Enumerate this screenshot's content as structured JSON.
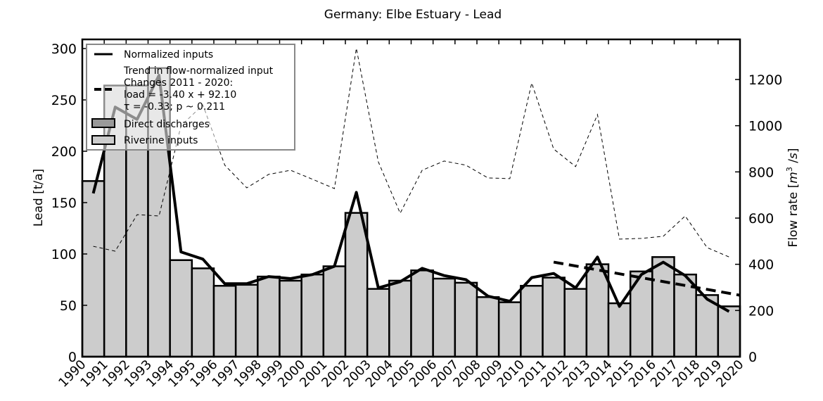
{
  "chart_data": {
    "type": "bar",
    "title": "Germany: Elbe Estuary - Lead",
    "xlabel": "",
    "ylabel": "Lead [t/a]",
    "ylabel_right": "Flow rate [m³/s]",
    "ylim": [
      0,
      300
    ],
    "ylim_right": [
      0,
      1335
    ],
    "yticks": [
      0,
      50,
      100,
      150,
      200,
      250,
      300
    ],
    "yticks_right": [
      0,
      200,
      400,
      600,
      800,
      1000,
      1200
    ],
    "xticks": [
      "1990",
      "1991",
      "1992",
      "1993",
      "1994",
      "1995",
      "1996",
      "1997",
      "1998",
      "1999",
      "2000",
      "2001",
      "2002",
      "2003",
      "2004",
      "2005",
      "2006",
      "2007",
      "2008",
      "2009",
      "2010",
      "2011",
      "2012",
      "2013",
      "2014",
      "2015",
      "2016",
      "2017",
      "2018",
      "2019",
      "2020"
    ],
    "categories": [
      "1990",
      "1991",
      "1992",
      "1993",
      "1994",
      "1995",
      "1996",
      "1997",
      "1998",
      "1999",
      "2000",
      "2001",
      "2002",
      "2003",
      "2004",
      "2005",
      "2006",
      "2007",
      "2008",
      "2009",
      "2010",
      "2011",
      "2012",
      "2013",
      "2014",
      "2015",
      "2016",
      "2017",
      "2018",
      "2019"
    ],
    "series": [
      {
        "name": "Direct discharges",
        "type": "bar",
        "color": "#999999",
        "values": [
          0,
          0,
          0,
          0,
          0,
          0,
          0,
          0,
          0,
          0,
          0,
          0,
          0,
          0,
          0,
          0,
          0,
          0,
          0,
          0,
          0,
          0,
          0,
          0,
          0,
          0,
          0,
          0,
          0,
          0
        ]
      },
      {
        "name": "Riverine inputs",
        "type": "bar",
        "color": "#cccccc",
        "values": [
          171,
          264,
          264,
          281,
          94,
          86,
          69,
          70,
          78,
          74,
          80,
          88,
          140,
          66,
          74,
          84,
          76,
          72,
          58,
          53,
          69,
          77,
          66,
          90,
          52,
          83,
          97,
          80,
          60,
          49
        ]
      },
      {
        "name": "Normalized inputs",
        "type": "line",
        "color": "#000000",
        "values": [
          159,
          243,
          231,
          274,
          102,
          95,
          71,
          71,
          78,
          76,
          80,
          88,
          160,
          67,
          73,
          86,
          79,
          75,
          59,
          54,
          77,
          81,
          67,
          97,
          49,
          80,
          92,
          79,
          56,
          44
        ]
      },
      {
        "name": "Flow rate",
        "type": "line",
        "axis": "right",
        "style": "dashed",
        "color": "#000000",
        "values": [
          478,
          457,
          615,
          609,
          1000,
          1090,
          829,
          731,
          789,
          807,
          768,
          728,
          1335,
          844,
          621,
          807,
          847,
          829,
          774,
          771,
          1185,
          899,
          823,
          1048,
          509,
          512,
          521,
          609,
          472,
          432
        ]
      },
      {
        "name": "Trend in flow-normalized input",
        "type": "line",
        "style": "dashed-thick",
        "color": "#000000",
        "x_range": [
          "2011",
          "2020"
        ],
        "equation": {
          "slope": -3.4,
          "intercept": 92.1
        }
      }
    ],
    "legend": {
      "position": "upper left",
      "entries": [
        {
          "label": "Normalized inputs",
          "kind": "line"
        },
        {
          "label": "Trend in flow-normalized input\nChanges 2011 - 2020:\nload = -3.40 x + 92.10\nτ = -0.33; p ~ 0.211",
          "kind": "dashed"
        },
        {
          "label": "Direct discharges",
          "kind": "patch",
          "color": "#999999"
        },
        {
          "label": "Riverine inputs",
          "kind": "patch",
          "color": "#cccccc"
        }
      ]
    },
    "grid": false
  },
  "legend_text": {
    "normalized": "Normalized inputs",
    "trend_line1": "Trend in flow-normalized input",
    "trend_line2": "Changes 2011 - 2020:",
    "trend_line3": "load = -3.40 x + 92.10",
    "trend_line4": "τ = -0.33; p ~ 0.211",
    "direct": "Direct discharges",
    "riverine": "Riverine inputs"
  }
}
